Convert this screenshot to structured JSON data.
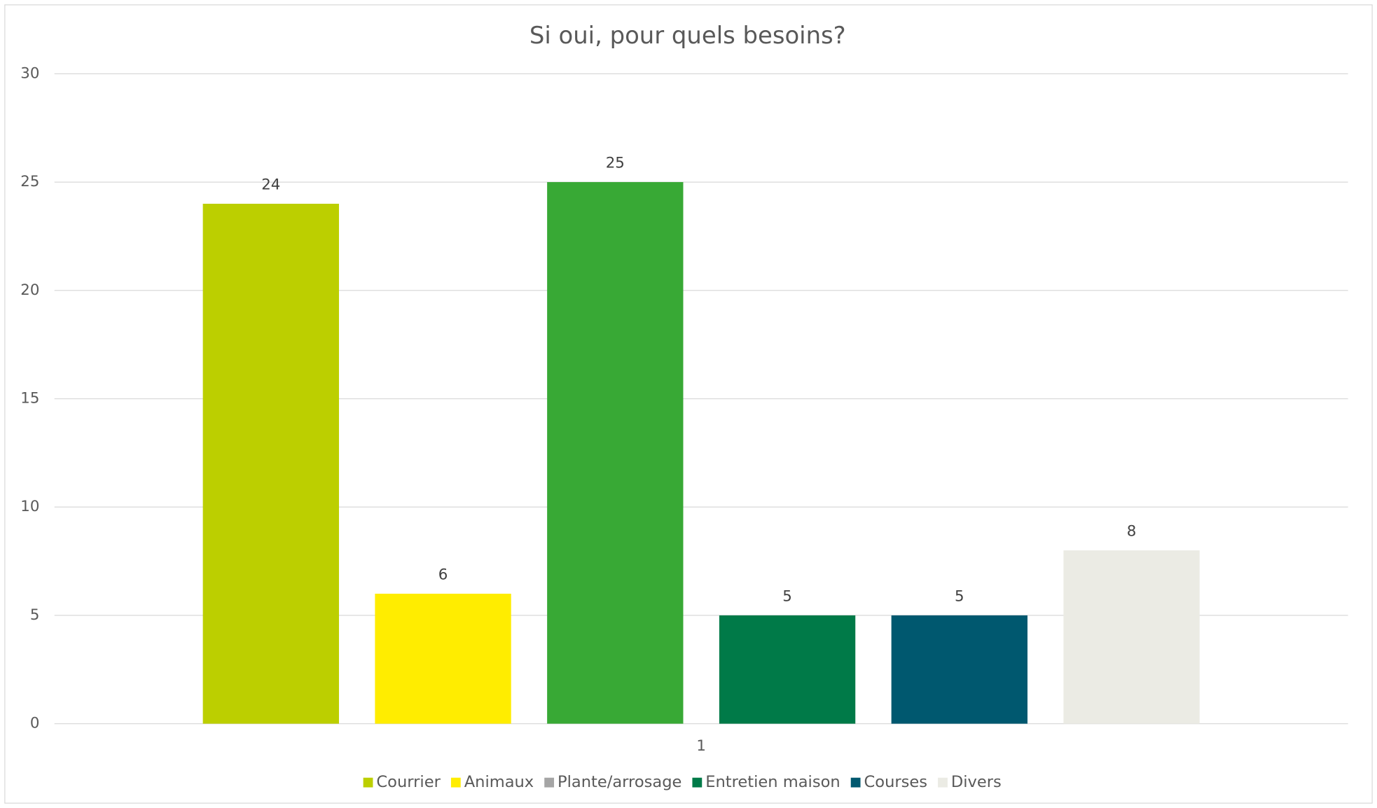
{
  "chart_data": {
    "type": "bar",
    "title": "Si oui, pour quels besoins?",
    "categories": [
      "1"
    ],
    "series": [
      {
        "name": "Courrier",
        "color": "#bccf00",
        "values": [
          24
        ]
      },
      {
        "name": "Animaux",
        "color": "#ffed00",
        "values": [
          6
        ]
      },
      {
        "name": "Plante/arrosage",
        "color": "#38a935",
        "legend_color": "#a5a5a5",
        "values": [
          25
        ]
      },
      {
        "name": "Entretien maison",
        "color": "#007a48",
        "values": [
          5
        ]
      },
      {
        "name": "Courses",
        "color": "#00586f",
        "values": [
          5
        ]
      },
      {
        "name": "Divers",
        "color": "#ebebe4",
        "values": [
          8
        ]
      }
    ],
    "ylim": [
      0,
      30
    ],
    "yticks": [
      0,
      5,
      10,
      15,
      20,
      25,
      30
    ],
    "grid": true,
    "legend": "bottom"
  }
}
